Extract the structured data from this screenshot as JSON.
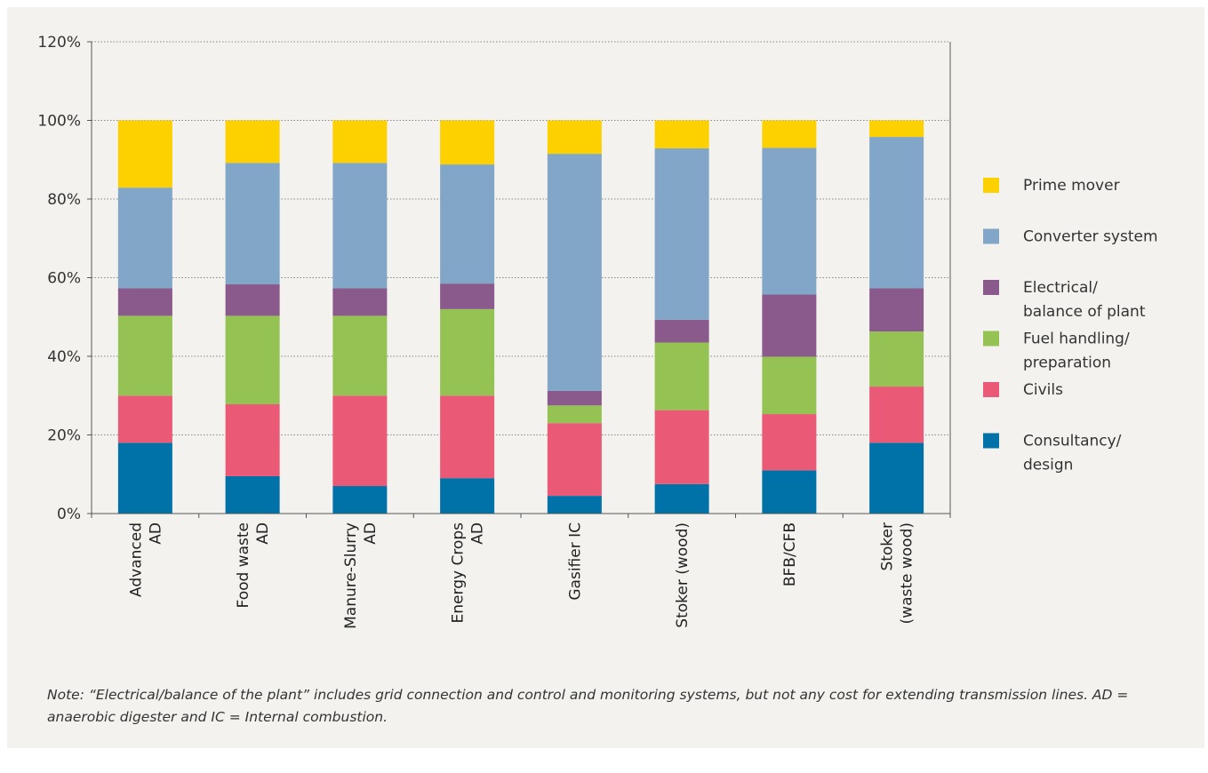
{
  "chart_data": {
    "type": "bar",
    "stacked": true,
    "categories": [
      [
        "Advanced",
        "AD"
      ],
      [
        "Food waste",
        "AD"
      ],
      [
        "Manure-Slurry",
        "AD"
      ],
      [
        "Energy Crops",
        "AD"
      ],
      [
        "Gasifier IC"
      ],
      [
        "Stoker (wood)"
      ],
      [
        "BFB/CFB"
      ],
      [
        "Stoker",
        "(waste wood)"
      ]
    ],
    "series": [
      {
        "name": "Consultancy/ design",
        "legend_lines": [
          "Consultancy/",
          "design"
        ],
        "color": "#0072a8",
        "values": [
          18,
          9.5,
          7,
          9,
          4.5,
          7.5,
          11,
          18
        ]
      },
      {
        "name": "Civils",
        "legend_lines": [
          "Civils"
        ],
        "color": "#ea5a76",
        "values": [
          12,
          18.3,
          23,
          21,
          18.5,
          18.8,
          14.3,
          14.3
        ]
      },
      {
        "name": "Fuel handling/ preparation",
        "legend_lines": [
          "Fuel handling/",
          "preparation"
        ],
        "color": "#95c353",
        "values": [
          20.3,
          22.5,
          20.3,
          22,
          4.5,
          17.2,
          14.6,
          14
        ]
      },
      {
        "name": "Electrical/ balance of plant",
        "legend_lines": [
          "Electrical/",
          "balance of plant"
        ],
        "color": "#8b5a8c",
        "values": [
          7,
          8,
          7,
          6.5,
          3.7,
          5.8,
          15.8,
          11
        ]
      },
      {
        "name": "Converter system",
        "legend_lines": [
          "Converter system"
        ],
        "color": "#82a6c8",
        "values": [
          25.6,
          30.9,
          31.9,
          30.3,
          60.3,
          43.6,
          37.3,
          38.5
        ]
      },
      {
        "name": "Prime mover",
        "legend_lines": [
          "Prime mover"
        ],
        "color": "#fdd000",
        "values": [
          17.1,
          10.8,
          10.8,
          11.2,
          8.5,
          7.1,
          7,
          4.2
        ]
      }
    ],
    "y_ticks": [
      "0%",
      "20%",
      "40%",
      "60%",
      "80%",
      "100%",
      "120%"
    ],
    "ylim": [
      0,
      120
    ],
    "grid": true,
    "legend_position": "right"
  },
  "note": "Note: “Electrical/balance of the plant” includes grid connection and control and monitoring systems, but not any cost for extending transmission lines. AD = anaerobic digester and IC = Internal combustion."
}
